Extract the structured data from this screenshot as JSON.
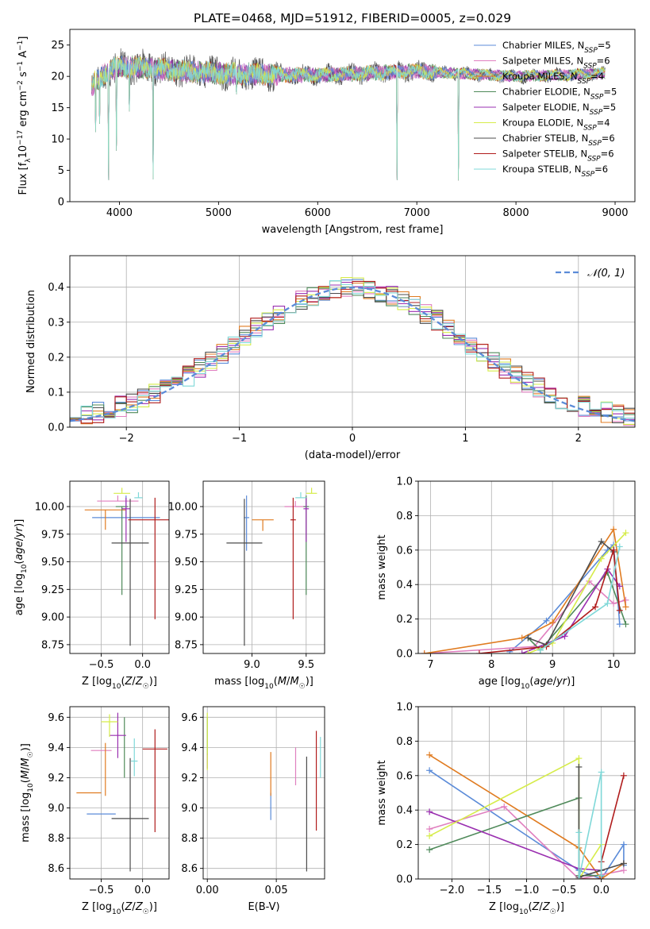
{
  "figure_title": "PLATE=0468, MJD=51912, FIBERID=0005, z=0.029",
  "colors": {
    "Chabrier MILES": "#5b8bd8",
    "Salpeter MILES": "#e07fbf",
    "Kroupa MILES": "#e07b20",
    "Chabrier ELODIE": "#4f8a5a",
    "Salpeter ELODIE": "#9a2fb0",
    "Kroupa ELODIE": "#d6ec4a",
    "Chabrier STELIB": "#4d4d4d",
    "Salpeter STELIB": "#b01c1c",
    "Kroupa STELIB": "#7fd8d8",
    "normal": "#5b8bd8"
  },
  "chart_data": [
    {
      "id": "spectrum",
      "type": "line",
      "title": "PLATE=0468, MJD=51912, FIBERID=0005, z=0.029",
      "xlabel": "wavelength [Angstrom, rest frame]",
      "ylabel": "Flux [f_λ 10^-17 erg cm^-2 s^-1 A^-1]",
      "xlim": [
        3500,
        9200
      ],
      "ylim": [
        0,
        27.5
      ],
      "xticks": [
        4000,
        5000,
        6000,
        7000,
        8000,
        9000
      ],
      "yticks": [
        0,
        5,
        10,
        15,
        20,
        25
      ],
      "legend_position": "top-right",
      "legend": [
        {
          "name": "Chabrier MILES",
          "nssp": "5"
        },
        {
          "name": "Salpeter MILES",
          "nssp": "6"
        },
        {
          "name": "Kroupa MILES",
          "nssp": "4"
        },
        {
          "name": "Chabrier ELODIE",
          "nssp": "5"
        },
        {
          "name": "Salpeter ELODIE",
          "nssp": "5"
        },
        {
          "name": "Kroupa ELODIE",
          "nssp": "4"
        },
        {
          "name": "Chabrier STELIB",
          "nssp": "6"
        },
        {
          "name": "Salpeter STELIB",
          "nssp": "6"
        },
        {
          "name": "Kroupa STELIB",
          "nssp": "6"
        }
      ],
      "continuum": {
        "x": [
          3720,
          3850,
          4000,
          4200,
          4500,
          5000,
          5500,
          6000,
          6500,
          7000,
          7500,
          8000,
          8500,
          8900
        ],
        "y": [
          18.5,
          20.5,
          21.5,
          21.5,
          21.0,
          20.5,
          20.3,
          20.2,
          20.5,
          20.8,
          20.4,
          20.0,
          20.2,
          20.5
        ]
      },
      "absorption_lines": [
        {
          "x": 3760,
          "y": 9.5
        },
        {
          "x": 3800,
          "y": 11
        },
        {
          "x": 3890,
          "y": 0
        },
        {
          "x": 3970,
          "y": 5.5
        },
        {
          "x": 4100,
          "y": 13
        },
        {
          "x": 4340,
          "y": 0
        },
        {
          "x": 5180,
          "y": 16.5
        },
        {
          "x": 6800,
          "y": 0
        },
        {
          "x": 7420,
          "y": 0
        }
      ]
    },
    {
      "id": "residuals",
      "type": "step",
      "xlabel": "(data-model)/error",
      "ylabel": "Normed distribution",
      "xlim": [
        -2.5,
        2.5
      ],
      "ylim": [
        0,
        0.49
      ],
      "xticks": [
        -2,
        -1,
        0,
        1,
        2
      ],
      "yticks": [
        0.0,
        0.1,
        0.2,
        0.3,
        0.4
      ],
      "legend_position": "top-right",
      "legend": [
        {
          "name": "𝒩(0, 1)"
        }
      ],
      "bin_edges_start": -2.5,
      "bin_width": 0.1,
      "bins": 50,
      "normal": {
        "mu": 0,
        "sigma": 1
      }
    },
    {
      "id": "age_vs_Z",
      "type": "errorbar",
      "xlabel": "Z [log10(Z/Z☉)]",
      "ylabel": "age [log10(age/yr)]",
      "xlim": [
        -0.88,
        0.32
      ],
      "ylim": [
        8.67,
        10.23
      ],
      "xticks": [
        -0.5,
        0.0
      ],
      "yticks": [
        8.75,
        9.0,
        9.25,
        9.5,
        9.75,
        10.0
      ],
      "points": [
        {
          "model": "Chabrier MILES",
          "x": -0.2,
          "y": 9.9,
          "xerr": 0.82,
          "yerr": [
            0.0,
            0.2
          ]
        },
        {
          "model": "Salpeter MILES",
          "x": -0.3,
          "y": 10.05,
          "xerr": 0.5,
          "yerr": [
            0.0,
            0.05
          ]
        },
        {
          "model": "Kroupa MILES",
          "x": -0.45,
          "y": 9.97,
          "xerr": 0.5,
          "yerr": [
            0.18,
            0.0
          ]
        },
        {
          "model": "Chabrier ELODIE",
          "x": -0.25,
          "y": 10.0,
          "xerr": 0.15,
          "yerr": [
            0.8,
            0.0
          ]
        },
        {
          "model": "Salpeter ELODIE",
          "x": -0.2,
          "y": 9.98,
          "xerr": 0.1,
          "yerr": [
            0.3,
            0.1
          ]
        },
        {
          "model": "Kroupa ELODIE",
          "x": -0.25,
          "y": 10.12,
          "xerr": 0.2,
          "yerr": [
            0.0,
            0.05
          ]
        },
        {
          "model": "Chabrier STELIB",
          "x": -0.15,
          "y": 9.67,
          "xerr": 0.45,
          "yerr": [
            0.93,
            0.4
          ]
        },
        {
          "model": "Salpeter STELIB",
          "x": 0.15,
          "y": 9.88,
          "xerr": 0.65,
          "yerr": [
            0.9,
            0.2
          ]
        },
        {
          "model": "Kroupa STELIB",
          "x": -0.05,
          "y": 10.08,
          "xerr": 0.1,
          "yerr": [
            0.0,
            0.05
          ]
        }
      ]
    },
    {
      "id": "age_vs_mass",
      "type": "errorbar",
      "xlabel": "mass [log10(M/M☉)]",
      "ylabel": "",
      "xlim": [
        8.55,
        9.67
      ],
      "ylim": [
        8.67,
        10.23
      ],
      "xticks": [
        9.0,
        9.5
      ],
      "yticks": [
        8.75,
        9.0,
        9.25,
        9.5,
        9.75,
        10.0
      ],
      "points": [
        {
          "model": "Chabrier MILES",
          "x": 8.95,
          "y": 9.9,
          "xerr": 0.05,
          "yerr": [
            0.3,
            0.2
          ]
        },
        {
          "model": "Salpeter MILES",
          "x": 9.4,
          "y": 10.0,
          "xerr": 0.2,
          "yerr": [
            0.0,
            0.05
          ]
        },
        {
          "model": "Kroupa MILES",
          "x": 9.1,
          "y": 9.88,
          "xerr": 0.2,
          "yerr": [
            0.1,
            0.0
          ]
        },
        {
          "model": "Chabrier ELODIE",
          "x": 9.5,
          "y": 10.0,
          "xerr": 0.05,
          "yerr": [
            0.8,
            0.1
          ]
        },
        {
          "model": "Salpeter ELODIE",
          "x": 9.5,
          "y": 9.98,
          "xerr": 0.05,
          "yerr": [
            0.3,
            0.1
          ]
        },
        {
          "model": "Kroupa ELODIE",
          "x": 9.55,
          "y": 10.12,
          "xerr": 0.1,
          "yerr": [
            0.0,
            0.05
          ]
        },
        {
          "model": "Chabrier STELIB",
          "x": 8.93,
          "y": 9.67,
          "xerr": 0.33,
          "yerr": [
            0.93,
            0.4
          ]
        },
        {
          "model": "Salpeter STELIB",
          "x": 9.38,
          "y": 9.88,
          "xerr": 0.05,
          "yerr": [
            0.9,
            0.2
          ]
        },
        {
          "model": "Kroupa STELIB",
          "x": 9.45,
          "y": 10.08,
          "xerr": 0.1,
          "yerr": [
            0.0,
            0.05
          ]
        }
      ]
    },
    {
      "id": "massweight_vs_age",
      "type": "line",
      "xlabel": "age [log10(age/yr)]",
      "ylabel": "mass weight",
      "xlim": [
        6.8,
        10.35
      ],
      "ylim": [
        0.0,
        1.0
      ],
      "xticks": [
        7,
        8,
        9,
        10
      ],
      "yticks": [
        0.0,
        0.2,
        0.4,
        0.6,
        0.8,
        1.0
      ],
      "series": [
        {
          "model": "Chabrier MILES",
          "x": [
            8.3,
            8.9,
            9.9,
            10.0,
            10.1
          ],
          "y": [
            0.01,
            0.19,
            0.6,
            0.63,
            0.17
          ]
        },
        {
          "model": "Salpeter MILES",
          "x": [
            6.9,
            8.7,
            9.6,
            10.0,
            10.2
          ],
          "y": [
            0.0,
            0.04,
            0.42,
            0.29,
            0.31
          ]
        },
        {
          "model": "Kroupa MILES",
          "x": [
            6.9,
            8.5,
            9.0,
            10.0,
            10.2
          ],
          "y": [
            0.0,
            0.09,
            0.18,
            0.72,
            0.27
          ]
        },
        {
          "model": "Chabrier ELODIE",
          "x": [
            8.6,
            8.8,
            9.9,
            10.2
          ],
          "y": [
            0.09,
            0.02,
            0.47,
            0.17
          ]
        },
        {
          "model": "Salpeter ELODIE",
          "x": [
            8.5,
            9.2,
            9.9,
            10.1
          ],
          "y": [
            0.0,
            0.1,
            0.49,
            0.39
          ]
        },
        {
          "model": "Kroupa ELODIE",
          "x": [
            8.6,
            9.0,
            9.8,
            10.2
          ],
          "y": [
            0.0,
            0.06,
            0.55,
            0.7
          ]
        },
        {
          "model": "Chabrier STELIB",
          "x": [
            8.6,
            8.9,
            9.8,
            10.0
          ],
          "y": [
            0.09,
            0.05,
            0.65,
            0.59
          ]
        },
        {
          "model": "Salpeter STELIB",
          "x": [
            7.8,
            8.9,
            9.7,
            10.0,
            10.1
          ],
          "y": [
            0.0,
            0.04,
            0.27,
            0.6,
            0.25
          ]
        },
        {
          "model": "Kroupa STELIB",
          "x": [
            8.8,
            9.9,
            10.1
          ],
          "y": [
            0.02,
            0.29,
            0.62
          ]
        }
      ]
    },
    {
      "id": "mass_vs_Z",
      "type": "errorbar",
      "xlabel": "Z [log10(Z/Z☉)]",
      "ylabel": "mass [log10(M/M☉)]",
      "xlim": [
        -0.88,
        0.32
      ],
      "ylim": [
        8.53,
        9.67
      ],
      "xticks": [
        -0.5,
        0.0
      ],
      "yticks": [
        8.6,
        8.8,
        9.0,
        9.2,
        9.4,
        9.6
      ],
      "points": [
        {
          "model": "Chabrier MILES",
          "x": -0.5,
          "y": 8.96,
          "xerr": 0.35,
          "yerr": [
            0.0,
            0.0
          ]
        },
        {
          "model": "Salpeter MILES",
          "x": -0.5,
          "y": 9.38,
          "xerr": 0.25,
          "yerr": [
            0.0,
            0.0
          ]
        },
        {
          "model": "Kroupa MILES",
          "x": -0.65,
          "y": 9.1,
          "xerr": 0.3,
          "yerr": [
            0.0,
            0.0
          ]
        },
        {
          "model": "Kroupa MILES",
          "x": -0.45,
          "y": 9.38,
          "xerr": 0.0,
          "yerr": [
            0.3,
            0.05
          ]
        },
        {
          "model": "Chabrier ELODIE",
          "x": -0.22,
          "y": 9.3,
          "xerr": 0.0,
          "yerr": [
            0.1,
            0.3
          ]
        },
        {
          "model": "Salpeter ELODIE",
          "x": -0.3,
          "y": 9.48,
          "xerr": 0.2,
          "yerr": [
            0.15,
            0.15
          ]
        },
        {
          "model": "Kroupa ELODIE",
          "x": -0.4,
          "y": 9.57,
          "xerr": 0.2,
          "yerr": [
            0.1,
            0.05
          ]
        },
        {
          "model": "Chabrier STELIB",
          "x": -0.15,
          "y": 8.93,
          "xerr": 0.45,
          "yerr": [
            0.35,
            0.4
          ]
        },
        {
          "model": "Salpeter STELIB",
          "x": 0.15,
          "y": 9.39,
          "xerr": 0.3,
          "yerr": [
            0.55,
            0.13
          ]
        },
        {
          "model": "Kroupa STELIB",
          "x": -0.1,
          "y": 9.31,
          "xerr": 0.08,
          "yerr": [
            0.1,
            0.15
          ]
        }
      ]
    },
    {
      "id": "mass_vs_EBV",
      "type": "errorbar",
      "xlabel": "E(B-V)",
      "ylabel": "",
      "xlim": [
        -0.003,
        0.085
      ],
      "ylim": [
        8.53,
        9.67
      ],
      "xticks": [
        0.0,
        0.05
      ],
      "yticks": [
        8.6,
        8.8,
        9.0,
        9.2,
        9.4,
        9.6
      ],
      "points": [
        {
          "model": "Chabrier MILES",
          "x": 0.046,
          "y": 9.0,
          "xerr": 0.0,
          "yerr": [
            0.08,
            0.1
          ]
        },
        {
          "model": "Salpeter MILES",
          "x": 0.064,
          "y": 9.3,
          "xerr": 0.0,
          "yerr": [
            0.15,
            0.1
          ]
        },
        {
          "model": "Kroupa MILES",
          "x": 0.046,
          "y": 9.2,
          "xerr": 0.0,
          "yerr": [
            0.12,
            0.17
          ]
        },
        {
          "model": "Chabrier ELODIE",
          "x": 0.0,
          "y": 9.4,
          "xerr": 0.0,
          "yerr": [
            0.05,
            0.2
          ]
        },
        {
          "model": "Salpeter ELODIE",
          "x": 0.0,
          "y": 9.31,
          "xerr": 0.0,
          "yerr": [
            0.05,
            0.05
          ]
        },
        {
          "model": "Kroupa ELODIE",
          "x": 0.0,
          "y": 9.45,
          "xerr": 0.0,
          "yerr": [
            0.2,
            0.18
          ]
        },
        {
          "model": "Chabrier STELIB",
          "x": 0.072,
          "y": 8.95,
          "xerr": 0.0,
          "yerr": [
            0.37,
            0.39
          ]
        },
        {
          "model": "Salpeter STELIB",
          "x": 0.079,
          "y": 9.2,
          "xerr": 0.0,
          "yerr": [
            0.35,
            0.31
          ]
        },
        {
          "model": "Kroupa STELIB",
          "x": 0.082,
          "y": 9.3,
          "xerr": 0.0,
          "yerr": [
            0.1,
            0.17
          ]
        }
      ]
    },
    {
      "id": "massweight_vs_Z",
      "type": "line",
      "xlabel": "Z [log10(Z/Z☉)]",
      "ylabel": "mass weight",
      "xlim": [
        -2.45,
        0.45
      ],
      "ylim": [
        0.0,
        1.0
      ],
      "xticks": [
        -2.0,
        -1.5,
        -1.0,
        -0.5,
        0.0
      ],
      "yticks": [
        0.0,
        0.2,
        0.4,
        0.6,
        0.8,
        1.0
      ],
      "series": [
        {
          "model": "Chabrier MILES",
          "x": [
            -2.3,
            -0.3,
            0.0,
            0.3,
            0.3
          ],
          "y": [
            0.63,
            0.05,
            0.0,
            0.2,
            0.08
          ]
        },
        {
          "model": "Salpeter MILES",
          "x": [
            -2.3,
            -1.3,
            -0.3,
            0.3
          ],
          "y": [
            0.29,
            0.42,
            0.0,
            0.05
          ]
        },
        {
          "model": "Kroupa MILES",
          "x": [
            -2.3,
            -0.3,
            0.0,
            0.3
          ],
          "y": [
            0.72,
            0.18,
            0.0,
            0.09
          ]
        },
        {
          "model": "Chabrier ELODIE",
          "x": [
            -2.3,
            -0.3,
            -0.3,
            0.0
          ],
          "y": [
            0.17,
            0.47,
            0.02,
            0.02
          ]
        },
        {
          "model": "Salpeter ELODIE",
          "x": [
            -2.3,
            -0.3,
            0.0
          ],
          "y": [
            0.39,
            0.06,
            0.05
          ]
        },
        {
          "model": "Kroupa ELODIE",
          "x": [
            -2.3,
            -0.3,
            -0.3,
            0.0
          ],
          "y": [
            0.25,
            0.7,
            0.0,
            0.2
          ]
        },
        {
          "model": "Chabrier STELIB",
          "x": [
            -0.3,
            -0.3,
            0.0,
            0.3
          ],
          "y": [
            0.65,
            0.01,
            0.05,
            0.09
          ]
        },
        {
          "model": "Salpeter STELIB",
          "x": [
            -0.3,
            0.0,
            0.0,
            0.3
          ],
          "y": [
            0.0,
            0.0,
            0.1,
            0.6
          ]
        },
        {
          "model": "Kroupa STELIB",
          "x": [
            -0.3,
            -0.3,
            0.0,
            0.0
          ],
          "y": [
            0.27,
            0.0,
            0.62,
            0.02
          ]
        }
      ]
    }
  ]
}
